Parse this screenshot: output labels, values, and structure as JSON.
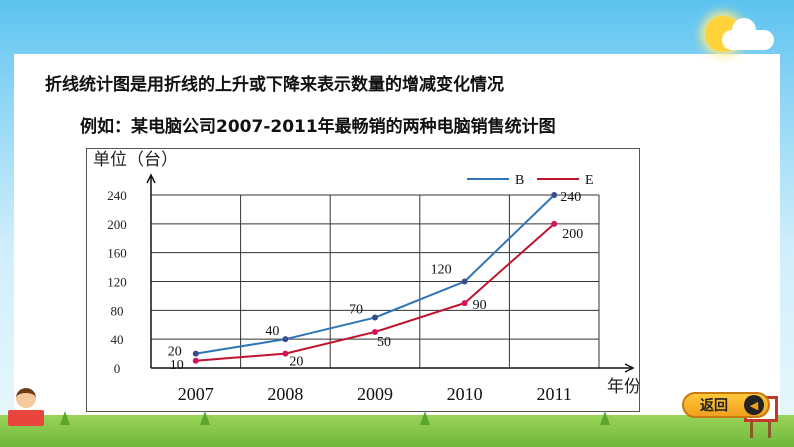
{
  "slide": {
    "heading": "折线统计图是用折线的上升或下降来表示数量的增减变化情况",
    "example_prefix": "例如：",
    "example_text": "某电脑公司2007-2011年最畅销的两种电脑销售统计图",
    "back_label": "返回"
  },
  "colors": {
    "series_b": "#2e75b6",
    "series_e": "#c0142d",
    "point_b": "#3b4a8a",
    "point_e": "#d4145a",
    "button": "#f0a020"
  },
  "icons": {
    "back_button_icon": "return-arrow-icon"
  },
  "chart_data": {
    "type": "line",
    "title": "",
    "ylabel": "单位（台）",
    "xlabel": "年份",
    "categories": [
      "2007",
      "2008",
      "2009",
      "2010",
      "2011"
    ],
    "y_ticks": [
      0,
      40,
      80,
      120,
      160,
      200,
      240
    ],
    "ylim": [
      0,
      240
    ],
    "grid": true,
    "legend_position": "top-right",
    "series": [
      {
        "name": "B",
        "values": [
          20,
          40,
          70,
          120,
          240
        ],
        "labels": [
          "20",
          "40",
          "70",
          "120",
          "240"
        ]
      },
      {
        "name": "E",
        "values": [
          10,
          20,
          50,
          90,
          200
        ],
        "labels": [
          "10",
          "20",
          "50",
          "90",
          "200"
        ]
      }
    ]
  }
}
